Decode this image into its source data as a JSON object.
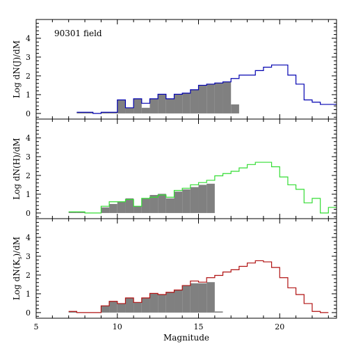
{
  "chart_data": [
    {
      "type": "histogram",
      "annotation": "90301 field",
      "ylabel": "Log dN(J)/dM",
      "xlabel": "",
      "xlim": [
        5,
        23.5
      ],
      "ylim": [
        -0.3,
        5
      ],
      "yticks": [
        0,
        1,
        2,
        3,
        4
      ],
      "xticks": [
        5,
        10,
        15,
        20
      ],
      "grid": false,
      "bin_width": 0.5,
      "series": [
        {
          "name": "",
          "style": "step",
          "color": "#0000b0",
          "bins_start": [
            7.5,
            8,
            8.5,
            9,
            9.5,
            10,
            10.5,
            11,
            11.5,
            12,
            12.5,
            13,
            13.5,
            14,
            14.5,
            15,
            15.5,
            16,
            16.5,
            17,
            17.5,
            18,
            18.5,
            19,
            19.5,
            20,
            20.5,
            21,
            21.5,
            22,
            22.5,
            23
          ],
          "values": [
            0.06,
            0.06,
            0,
            0.06,
            0.06,
            0.72,
            0.3,
            0.78,
            0.54,
            0.78,
            1.02,
            0.78,
            1.02,
            1.08,
            1.26,
            1.5,
            1.56,
            1.62,
            1.68,
            1.86,
            2.04,
            2.04,
            2.28,
            2.46,
            2.58,
            2.58,
            2.04,
            1.56,
            0.72,
            0.6,
            0.48,
            0.48
          ]
        },
        {
          "name": "",
          "style": "filled",
          "color": "#808080",
          "bins_start": [
            7.5,
            8,
            9,
            9.5,
            10,
            10.5,
            11,
            11.5,
            12,
            12.5,
            13,
            13.5,
            14,
            14.5,
            15,
            15.5,
            16,
            16.5,
            17
          ],
          "values": [
            0.06,
            0.06,
            0.06,
            0.06,
            0.72,
            0.3,
            0.78,
            0.3,
            0.78,
            1.02,
            0.78,
            1.02,
            1.08,
            1.26,
            1.5,
            1.56,
            1.62,
            1.68,
            0.48
          ]
        }
      ]
    },
    {
      "type": "histogram",
      "annotation": "",
      "ylabel": "Log dN(H)/dM",
      "xlabel": "",
      "xlim": [
        5,
        23.5
      ],
      "ylim": [
        -0.3,
        5
      ],
      "yticks": [
        0,
        1,
        2,
        3,
        4
      ],
      "xticks": [
        5,
        10,
        15,
        20
      ],
      "grid": false,
      "bin_width": 0.5,
      "series": [
        {
          "name": "",
          "style": "step",
          "color": "#33dd33",
          "bins_start": [
            7,
            7.5,
            8,
            8.5,
            9,
            9.5,
            10,
            10.5,
            11,
            11.5,
            12,
            12.5,
            13,
            13.5,
            14,
            14.5,
            15,
            15.5,
            16,
            16.5,
            17,
            17.5,
            18,
            18.5,
            19,
            19.5,
            20,
            20.5,
            21,
            21.5,
            22,
            22.5,
            23
          ],
          "values": [
            0.06,
            0.06,
            0,
            0,
            0.36,
            0.6,
            0.6,
            0.72,
            0.36,
            0.78,
            0.84,
            0.96,
            0.84,
            1.2,
            1.32,
            1.5,
            1.62,
            1.74,
            1.98,
            2.1,
            2.22,
            2.4,
            2.58,
            2.7,
            2.7,
            2.46,
            1.92,
            1.5,
            1.26,
            0.54,
            0.78,
            0,
            0.3
          ]
        },
        {
          "name": "",
          "style": "filled",
          "color": "#808080",
          "bins_start": [
            7,
            7.5,
            9,
            9.5,
            10,
            10.5,
            11,
            11.5,
            12,
            12.5,
            13,
            13.5,
            14,
            14.5,
            15,
            15.5
          ],
          "values": [
            0.06,
            0.06,
            0.3,
            0.48,
            0.6,
            0.78,
            0.36,
            0.78,
            0.96,
            1.02,
            0.78,
            1.14,
            1.26,
            1.38,
            1.5,
            1.56
          ]
        }
      ]
    },
    {
      "type": "histogram",
      "annotation": "",
      "ylabel_parts": [
        "Log dN(K",
        "s",
        ")/dM"
      ],
      "xlabel": "Magnitude",
      "xlim": [
        5,
        23.5
      ],
      "ylim": [
        -0.3,
        5
      ],
      "yticks": [
        0,
        1,
        2,
        3,
        4
      ],
      "xticks": [
        5,
        10,
        15,
        20
      ],
      "grid": false,
      "bin_width": 0.5,
      "series": [
        {
          "name": "",
          "style": "step",
          "color": "#b01010",
          "bins_start": [
            7,
            7.5,
            8,
            8.5,
            9,
            9.5,
            10,
            10.5,
            11,
            11.5,
            12,
            12.5,
            13,
            13.5,
            14,
            14.5,
            15,
            15.5,
            16,
            16.5,
            17,
            17.5,
            18,
            18.5,
            19,
            19.5,
            20,
            20.5,
            21,
            21.5,
            22,
            22.5
          ],
          "values": [
            0.06,
            0,
            0,
            0,
            0.36,
            0.6,
            0.48,
            0.78,
            0.54,
            0.78,
            1.02,
            0.96,
            1.08,
            1.2,
            1.44,
            1.68,
            1.62,
            1.86,
            1.98,
            2.16,
            2.28,
            2.46,
            2.64,
            2.76,
            2.7,
            2.4,
            1.86,
            1.32,
            0.96,
            0.48,
            0.06,
            0
          ]
        },
        {
          "name": "",
          "style": "filled",
          "color": "#808080",
          "bins_start": [
            7,
            9,
            9.5,
            10,
            10.5,
            11,
            11.5,
            12,
            12.5,
            13,
            13.5,
            14,
            14.5,
            15,
            15.5,
            16
          ],
          "values": [
            0.06,
            0.36,
            0.6,
            0.48,
            0.78,
            0.54,
            0.78,
            1.02,
            0.96,
            1.08,
            1.2,
            1.44,
            1.56,
            1.56,
            1.62,
            0.06
          ]
        }
      ]
    }
  ]
}
